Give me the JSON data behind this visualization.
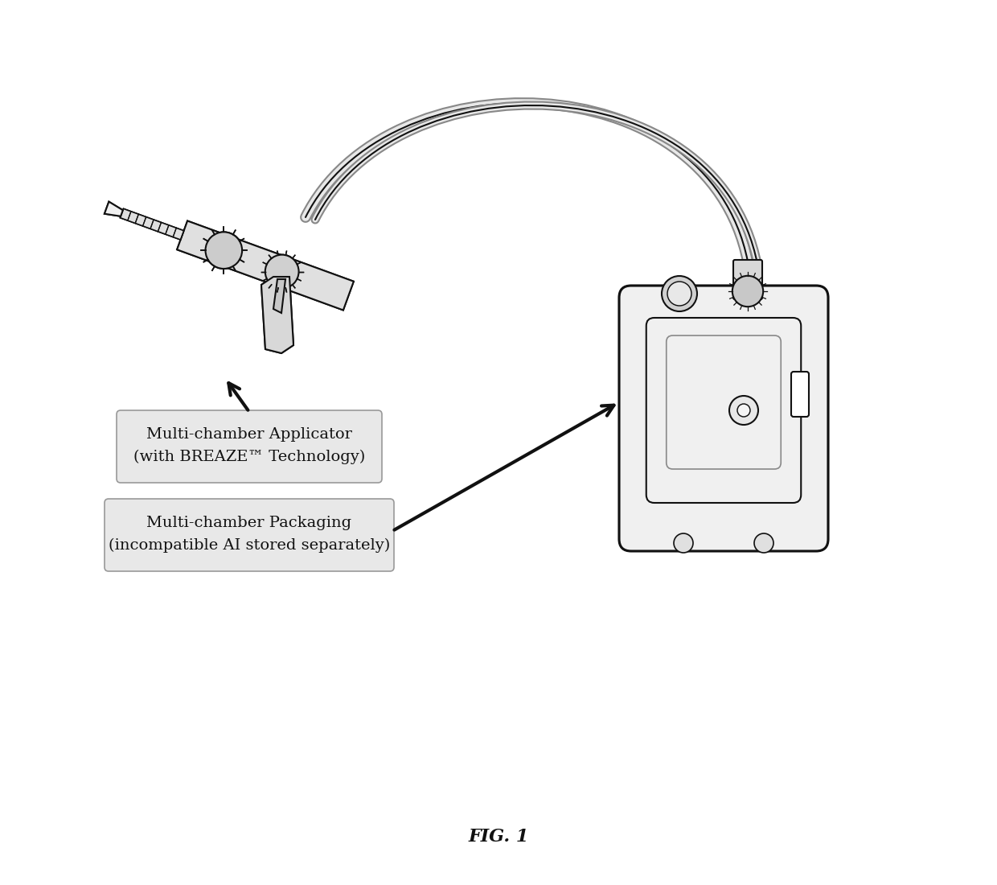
{
  "bg_color": "#ffffff",
  "fig_label": "FIG. 1",
  "fig_label_style": "bold italic",
  "fig_label_fontsize": 16,
  "label1_lines": [
    "Multi-chamber Applicator",
    "(with BREAZE™ Technology)"
  ],
  "label2_lines": [
    "Multi-chamber Packaging",
    "(incompatible AI stored separately)"
  ],
  "label_fontsize": 14,
  "label_box_color": "#e8e8e8",
  "label_box_edge": "#aaaaaa",
  "arrow_color": "#111111",
  "line_color": "#333333",
  "line_width": 1.5,
  "dark_line": "#111111"
}
